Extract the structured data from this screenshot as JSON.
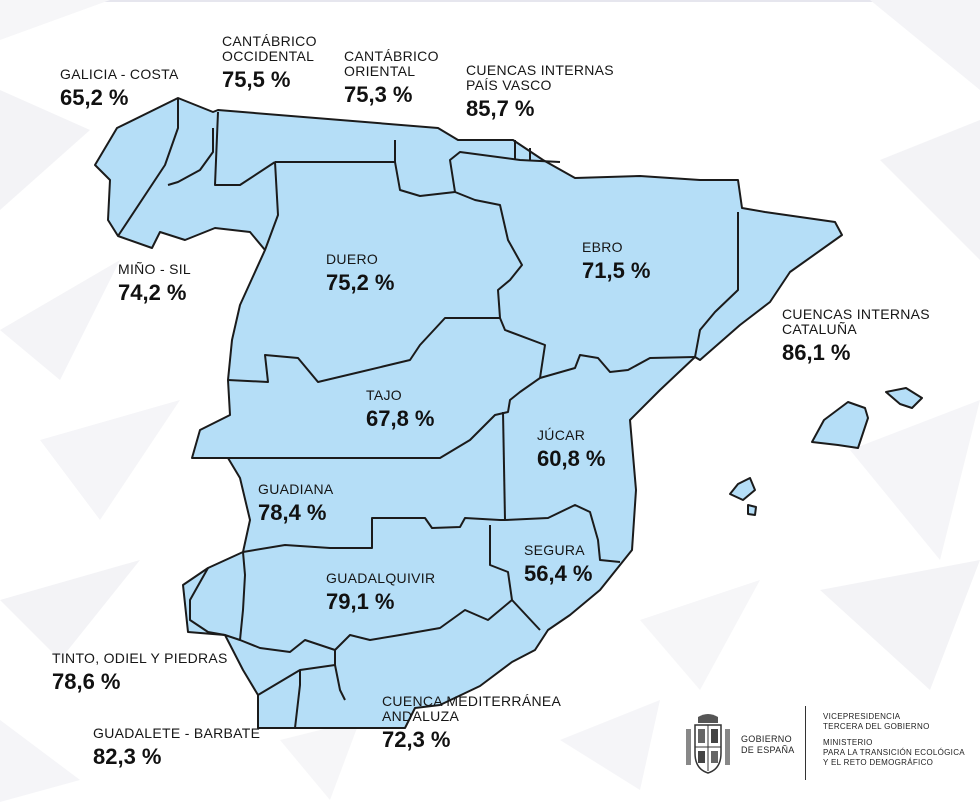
{
  "regions": [
    {
      "id": "galicia-costa",
      "name": "GALICIA - COSTA",
      "value": "65,2 %"
    },
    {
      "id": "cantabrico-occidental",
      "name_lines": [
        "CANTÁBRICO",
        "OCCIDENTAL"
      ],
      "value": "75,5 %"
    },
    {
      "id": "cantabrico-oriental",
      "name_lines": [
        "CANTÁBRICO",
        "ORIENTAL"
      ],
      "value": "75,3 %"
    },
    {
      "id": "pais-vasco",
      "name_lines": [
        "CUENCAS INTERNAS",
        "PAÍS VASCO"
      ],
      "value": "85,7 %"
    },
    {
      "id": "mino-sil",
      "name": "MIÑO - SIL",
      "value": "74,2 %"
    },
    {
      "id": "duero",
      "name": "DUERO",
      "value": "75,2 %"
    },
    {
      "id": "ebro",
      "name": "EBRO",
      "value": "71,5 %"
    },
    {
      "id": "cataluna",
      "name_lines": [
        "CUENCAS INTERNAS",
        "CATALUÑA"
      ],
      "value": "86,1 %"
    },
    {
      "id": "tajo",
      "name": "TAJO",
      "value": "67,8 %"
    },
    {
      "id": "jucar",
      "name": "JÚCAR",
      "value": "60,8 %"
    },
    {
      "id": "guadiana",
      "name": "GUADIANA",
      "value": "78,4 %"
    },
    {
      "id": "guadalquivir",
      "name": "GUADALQUIVIR",
      "value": "79,1 %"
    },
    {
      "id": "segura",
      "name": "SEGURA",
      "value": "56,4 %"
    },
    {
      "id": "tinto-odiel",
      "name": "TINTO, ODIEL Y PIEDRAS",
      "value": "78,6 %"
    },
    {
      "id": "mediterranea-andaluza",
      "name_lines": [
        "CUENCA MEDITERRÁNEA",
        "ANDALUZA"
      ],
      "value": "72,3 %"
    },
    {
      "id": "guadalete-barbate",
      "name": "GUADALETE - BARBATE",
      "value": "82,3 %"
    }
  ],
  "footer": {
    "gobierno_lines": [
      "GOBIERNO",
      "DE ESPAÑA"
    ],
    "vicepresidencia_lines": [
      "VICEPRESIDENCIA",
      "TERCERA DEL GOBIERNO"
    ],
    "ministerio_lines": [
      "MINISTERIO",
      "PARA LA TRANSICIÓN ECOLÓGICA",
      "Y EL RETO DEMOGRÁFICO"
    ]
  },
  "colors": {
    "region_fill": "#b5def7",
    "border": "#1b1b1b",
    "background": "#ffffff"
  },
  "icons": {
    "coat_of_arms": "spain-coat-of-arms-icon"
  }
}
